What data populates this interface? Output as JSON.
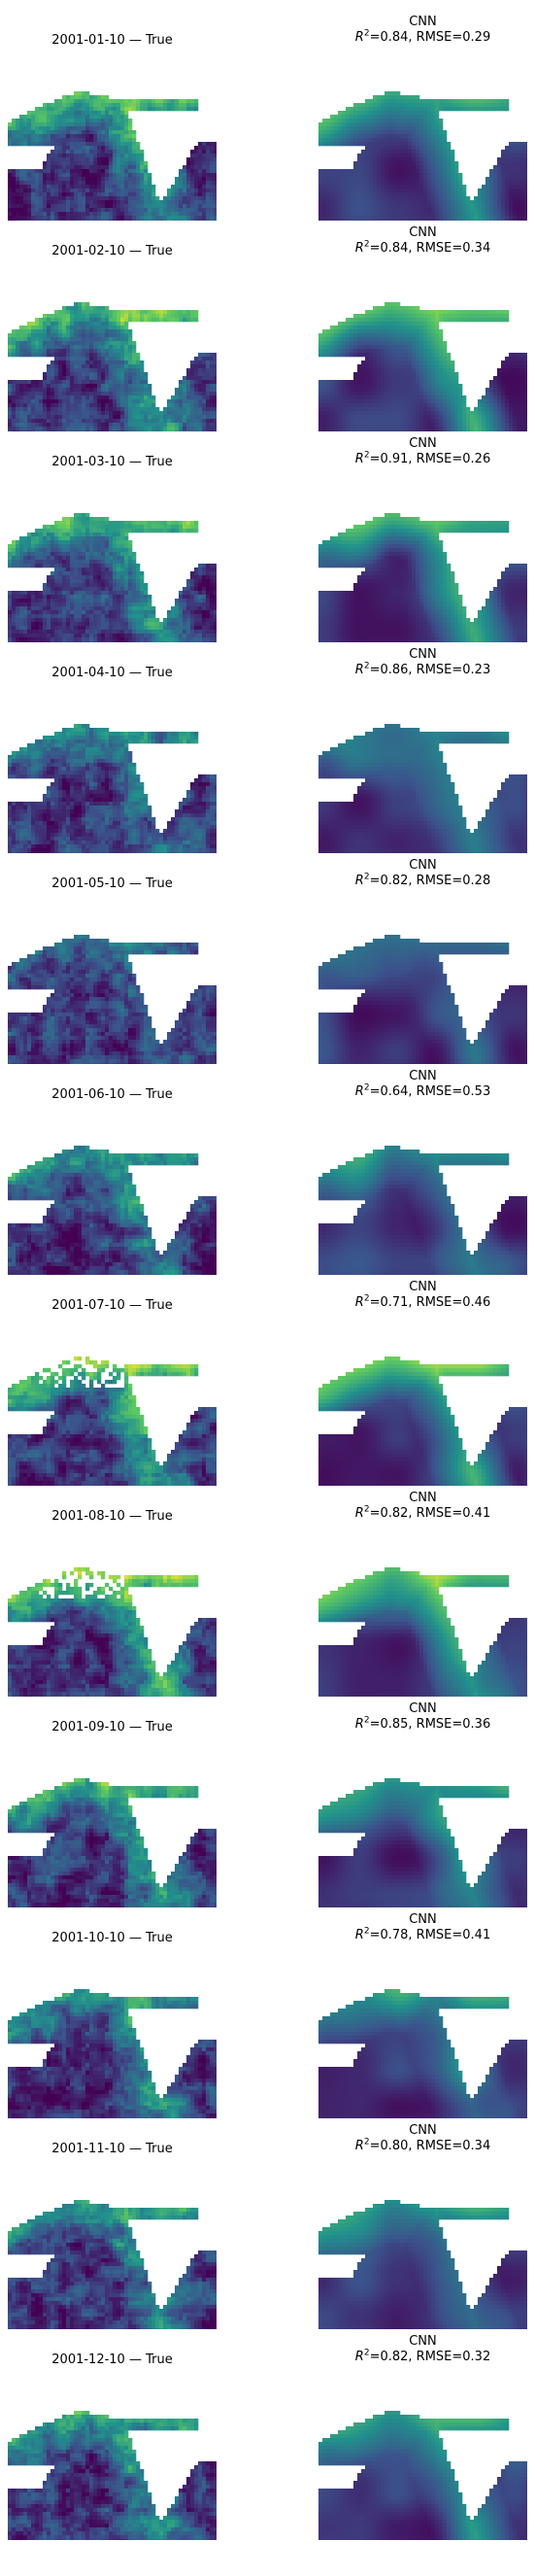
{
  "figure": {
    "colormap": "viridis",
    "colors": {
      "land_white": "#ffffff",
      "viridis_low": "#440154",
      "viridis_mid": "#21918c",
      "viridis_high": "#fde725"
    },
    "rows": [
      {
        "true_title": "2001-01-10 — True",
        "model": "CNN",
        "r2_label": "R",
        "r2_sup": "2",
        "metrics": "=0.84, RMSE=0.29",
        "r2": 0.84,
        "rmse": 0.29,
        "season_level": 0.75
      },
      {
        "true_title": "2001-02-10 — True",
        "model": "CNN",
        "r2_label": "R",
        "r2_sup": "2",
        "metrics": "=0.84, RMSE=0.34",
        "r2": 0.84,
        "rmse": 0.34,
        "season_level": 0.8
      },
      {
        "true_title": "2001-03-10 — True",
        "model": "CNN",
        "r2_label": "R",
        "r2_sup": "2",
        "metrics": "=0.91, RMSE=0.26",
        "r2": 0.91,
        "rmse": 0.26,
        "season_level": 0.7
      },
      {
        "true_title": "2001-04-10 — True",
        "model": "CNN",
        "r2_label": "R",
        "r2_sup": "2",
        "metrics": "=0.86, RMSE=0.23",
        "r2": 0.86,
        "rmse": 0.23,
        "season_level": 0.4
      },
      {
        "true_title": "2001-05-10 — True",
        "model": "CNN",
        "r2_label": "R",
        "r2_sup": "2",
        "metrics": "=0.82, RMSE=0.28",
        "r2": 0.82,
        "rmse": 0.28,
        "season_level": 0.3
      },
      {
        "true_title": "2001-06-10 — True",
        "model": "CNN",
        "r2_label": "R",
        "r2_sup": "2",
        "metrics": "=0.64, RMSE=0.53",
        "r2": 0.64,
        "rmse": 0.53,
        "season_level": 0.55
      },
      {
        "true_title": "2001-07-10 — True",
        "model": "CNN",
        "r2_label": "R",
        "r2_sup": "2",
        "metrics": "=0.71, RMSE=0.46",
        "r2": 0.71,
        "rmse": 0.46,
        "season_level": 0.85
      },
      {
        "true_title": "2001-08-10 — True",
        "model": "CNN",
        "r2_label": "R",
        "r2_sup": "2",
        "metrics": "=0.82, RMSE=0.41",
        "r2": 0.82,
        "rmse": 0.41,
        "season_level": 0.9
      },
      {
        "true_title": "2001-09-10 — True",
        "model": "CNN",
        "r2_label": "R",
        "r2_sup": "2",
        "metrics": "=0.85, RMSE=0.36",
        "r2": 0.85,
        "rmse": 0.36,
        "season_level": 0.65
      },
      {
        "true_title": "2001-10-10 — True",
        "model": "CNN",
        "r2_label": "R",
        "r2_sup": "2",
        "metrics": "=0.78, RMSE=0.41",
        "r2": 0.78,
        "rmse": 0.41,
        "season_level": 0.55
      },
      {
        "true_title": "2001-11-10 — True",
        "model": "CNN",
        "r2_label": "R",
        "r2_sup": "2",
        "metrics": "=0.80, RMSE=0.34",
        "r2": 0.8,
        "rmse": 0.34,
        "season_level": 0.55
      },
      {
        "true_title": "2001-12-10 — True",
        "model": "CNN",
        "r2_label": "R",
        "r2_sup": "2",
        "metrics": "=0.82, RMSE=0.32",
        "r2": 0.82,
        "rmse": 0.32,
        "season_level": 0.6
      }
    ]
  },
  "chart_data": {
    "type": "heatmap",
    "panel_grid": {
      "rows": 12,
      "cols": 2,
      "columns": [
        "True",
        "CNN"
      ]
    },
    "dates": [
      "2001-01-10",
      "2001-02-10",
      "2001-03-10",
      "2001-04-10",
      "2001-05-10",
      "2001-06-10",
      "2001-07-10",
      "2001-08-10",
      "2001-09-10",
      "2001-10-10",
      "2001-11-10",
      "2001-12-10"
    ],
    "series": [
      {
        "name": "R2",
        "values": [
          0.84,
          0.84,
          0.91,
          0.86,
          0.82,
          0.64,
          0.71,
          0.82,
          0.85,
          0.78,
          0.8,
          0.82
        ]
      },
      {
        "name": "RMSE",
        "values": [
          0.29,
          0.34,
          0.26,
          0.23,
          0.28,
          0.53,
          0.46,
          0.41,
          0.36,
          0.41,
          0.34,
          0.32
        ]
      }
    ],
    "colormap": "viridis",
    "axes": "off",
    "grid": false
  }
}
